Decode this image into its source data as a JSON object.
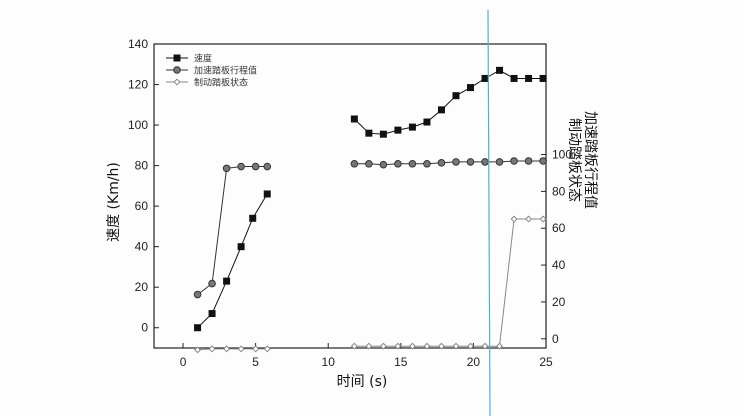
{
  "chart_data": {
    "type": "line",
    "title": "",
    "xlabel": "时间 (s)",
    "ylabel_left": "速度 (Km/h)",
    "ylabel_right": [
      "加速踏板行程值",
      "制动踏板状态"
    ],
    "xlim": [
      -2,
      25
    ],
    "ylim_left": [
      -10,
      140
    ],
    "ylim_right": [
      -5,
      160
    ],
    "xticks": [
      0,
      5,
      10,
      15,
      20,
      25
    ],
    "yticks_left": [
      0,
      20,
      40,
      60,
      80,
      100,
      120,
      140
    ],
    "yticks_right": [
      0,
      20,
      40,
      60,
      80,
      100
    ],
    "legend_position": "top-left",
    "grid": false,
    "series": [
      {
        "name": "速度",
        "axis": "left",
        "marker": "square",
        "color": "#111111",
        "segments": [
          [
            [
              1,
              0
            ],
            [
              2,
              7
            ],
            [
              3,
              23
            ],
            [
              4,
              40
            ],
            [
              4.8,
              54
            ],
            [
              5.8,
              66
            ]
          ],
          [
            [
              11.8,
              103
            ],
            [
              12.8,
              96
            ],
            [
              13.8,
              95.5
            ],
            [
              14.8,
              97.5
            ],
            [
              15.8,
              99
            ],
            [
              16.8,
              101.5
            ],
            [
              17.8,
              107.5
            ],
            [
              18.8,
              114.5
            ],
            [
              19.8,
              118.5
            ],
            [
              20.8,
              123
            ],
            [
              21.8,
              127
            ],
            [
              22.8,
              123
            ],
            [
              23.8,
              123
            ],
            [
              24.8,
              123
            ]
          ]
        ]
      },
      {
        "name": "加速踏板行程值",
        "axis": "right",
        "marker": "circle",
        "color": "#333333",
        "segments": [
          [
            [
              1,
              24
            ],
            [
              2,
              30
            ],
            [
              3,
              92.5
            ],
            [
              4,
              93.5
            ],
            [
              5,
              93.5
            ],
            [
              5.8,
              93.5
            ]
          ],
          [
            [
              11.8,
              95
            ],
            [
              12.8,
              95
            ],
            [
              13.8,
              94.5
            ],
            [
              14.8,
              95
            ],
            [
              15.8,
              95
            ],
            [
              16.8,
              95
            ],
            [
              17.8,
              95.5
            ],
            [
              18.8,
              96
            ],
            [
              19.8,
              96
            ],
            [
              20.8,
              96
            ],
            [
              21.8,
              96
            ],
            [
              22.8,
              96.5
            ],
            [
              23.8,
              96.5
            ],
            [
              24.8,
              96.5
            ]
          ]
        ]
      },
      {
        "name": "制动踏板状态",
        "axis": "right",
        "marker": "diamond",
        "color": "#888888",
        "segments": [
          [
            [
              1,
              -6
            ],
            [
              2,
              -5.5
            ],
            [
              3,
              -5.5
            ],
            [
              4,
              -5.5
            ],
            [
              5,
              -5.5
            ],
            [
              5.8,
              -5.5
            ]
          ],
          [
            [
              11.8,
              -4
            ],
            [
              12.8,
              -4
            ],
            [
              13.8,
              -4
            ],
            [
              14.8,
              -4
            ],
            [
              15.8,
              -4
            ],
            [
              16.8,
              -4
            ],
            [
              17.8,
              -4
            ],
            [
              18.8,
              -4
            ],
            [
              19.8,
              -4
            ],
            [
              20.8,
              -4
            ],
            [
              21.8,
              -4
            ],
            [
              22.8,
              65
            ],
            [
              23.8,
              65
            ],
            [
              24.8,
              65
            ]
          ]
        ]
      }
    ]
  }
}
